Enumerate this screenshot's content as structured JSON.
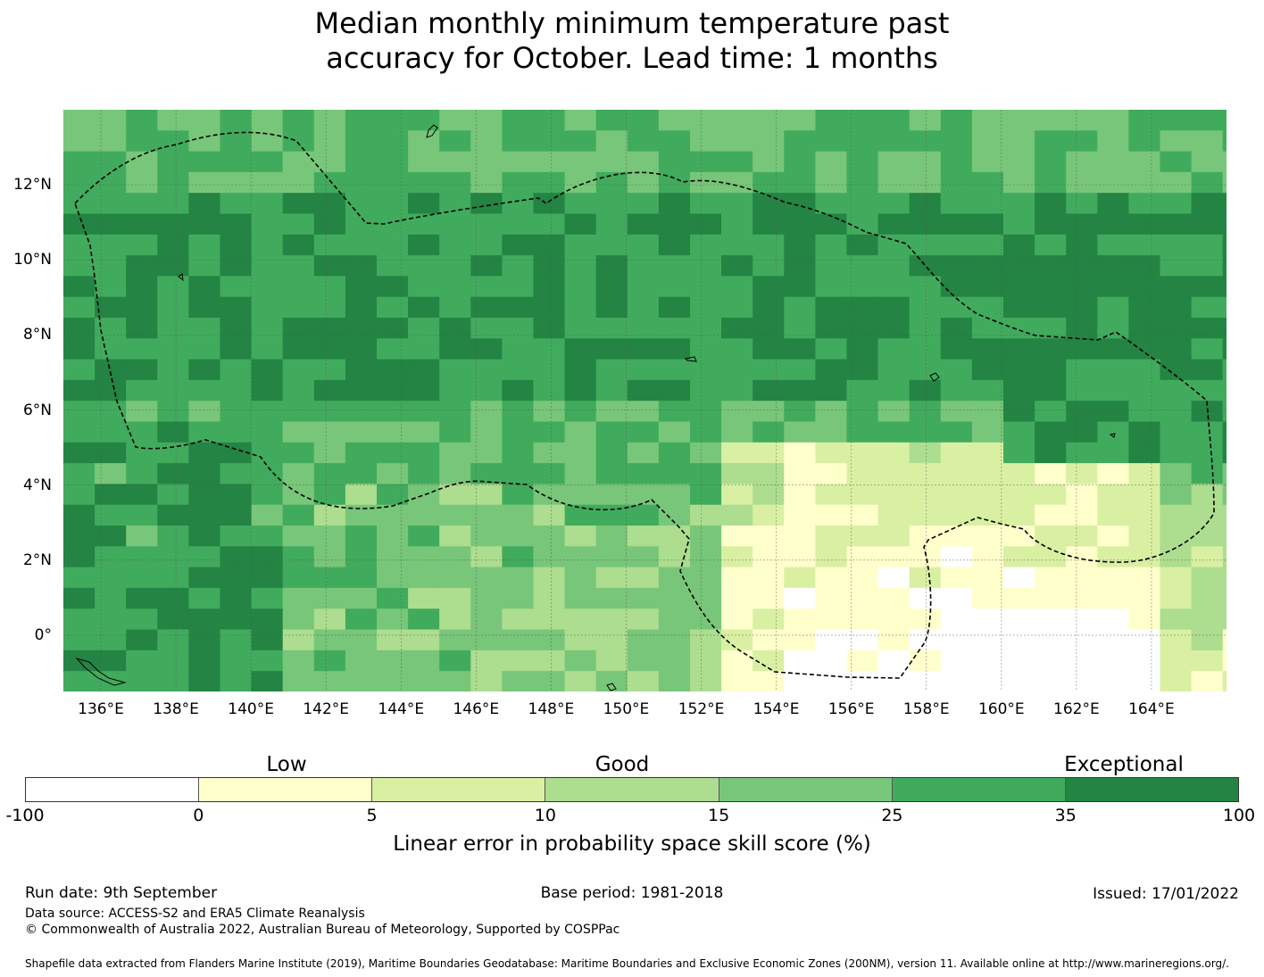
{
  "title": {
    "line1": "Median monthly minimum temperature past",
    "line2": "accuracy for October. Lead time: 1 months"
  },
  "map": {
    "lat_range": [
      "-1.5",
      "14"
    ],
    "lon_range": [
      "135",
      "166"
    ],
    "y_ticks": [
      "12°N",
      "10°N",
      "8°N",
      "6°N",
      "4°N",
      "2°N",
      "0°"
    ],
    "x_ticks": [
      "136°E",
      "138°E",
      "140°E",
      "142°E",
      "144°E",
      "146°E",
      "148°E",
      "150°E",
      "152°E",
      "154°E",
      "156°E",
      "158°E",
      "160°E",
      "162°E",
      "164°E"
    ],
    "boundary": "dashed EEZ outline",
    "grid": "on"
  },
  "legend": {
    "categories": [
      "Low",
      "Good",
      "Exceptional"
    ],
    "colors": [
      "#ffffff",
      "#ffffcc",
      "#d9f0a3",
      "#addd8e",
      "#78c679",
      "#41ab5d",
      "#238443"
    ],
    "ticks": [
      "-100",
      "0",
      "5",
      "10",
      "15",
      "25",
      "35",
      "100"
    ],
    "label": "Linear error in probability space skill score (%)"
  },
  "footer": {
    "run_date": "Run date: 9th September",
    "base_period": "Base period: 1981-2018",
    "issued": "Issued: 17/01/2022",
    "data_source": "Data source: ACCESS-S2 and ERA5 Climate Reanalysis",
    "copyright": "© Commonwealth of Australia 2022, Australian Bureau of Meteorology, Supported by COSPPac",
    "shapefile": "Shapefile data extracted from Flanders Marine Institute (2019), Maritime Boundaries Geodatabase: Maritime Boundaries and Exclusive Economic Zones (200NM), version 11. Available online at http://www.marineregions.org/."
  }
}
